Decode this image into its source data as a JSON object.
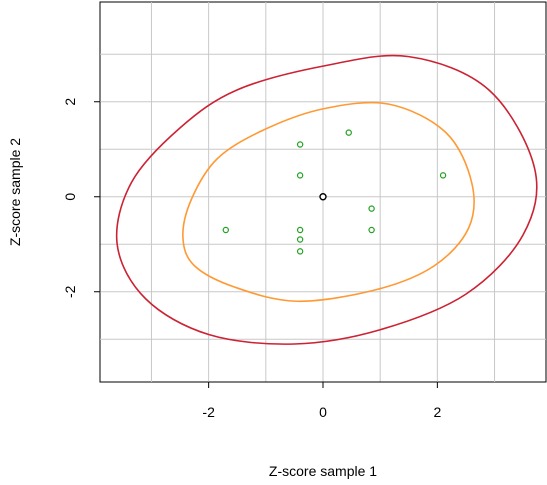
{
  "chart_data": {
    "type": "scatter",
    "title": "",
    "xlabel": "Z-score sample 1",
    "ylabel": "Z-score sample 2",
    "xlim": [
      -3.9,
      3.9
    ],
    "ylim": [
      -3.9,
      4.1
    ],
    "grid": true,
    "x_ticks": [
      -2,
      0,
      2
    ],
    "x_tick_labels": [
      "-2",
      "0",
      "2"
    ],
    "y_ticks": [
      -2,
      0,
      2
    ],
    "y_tick_labels": [
      "-2",
      "0",
      "2"
    ],
    "colors": {
      "points": "#22a022",
      "center": "#000000",
      "outer_ellipse": "#cc2233",
      "inner_ellipse": "#ff9933",
      "grid": "#c8c8c8"
    },
    "series": [
      {
        "points": [
          {
            "x": -1.7,
            "y": -0.7
          },
          {
            "x": -0.4,
            "y": 1.1
          },
          {
            "x": -0.4,
            "y": 0.45
          },
          {
            "x": -0.4,
            "y": -0.7
          },
          {
            "x": -0.4,
            "y": -0.9
          },
          {
            "x": -0.4,
            "y": -1.15
          },
          {
            "x": 0.45,
            "y": 1.35
          },
          {
            "x": 0.85,
            "y": -0.25
          },
          {
            "x": 0.85,
            "y": -0.7
          },
          {
            "x": 2.1,
            "y": 0.45
          }
        ]
      }
    ],
    "center": {
      "x": 0.0,
      "y": 0.0
    },
    "ellipses": [
      {
        "name": "outer",
        "points": [
          [
            -3.6,
            -1.0
          ],
          [
            -3.35,
            0.3
          ],
          [
            -2.5,
            1.45
          ],
          [
            -1.5,
            2.25
          ],
          [
            0.0,
            2.75
          ],
          [
            1.5,
            2.95
          ],
          [
            2.9,
            2.25
          ],
          [
            3.7,
            0.6
          ],
          [
            3.5,
            -0.8
          ],
          [
            2.5,
            -2.05
          ],
          [
            1.0,
            -2.8
          ],
          [
            -0.5,
            -3.1
          ],
          [
            -2.0,
            -2.9
          ],
          [
            -3.1,
            -2.15
          ]
        ]
      },
      {
        "name": "inner",
        "points": [
          [
            -2.45,
            -0.85
          ],
          [
            -2.3,
            -0.05
          ],
          [
            -1.85,
            0.8
          ],
          [
            -1.05,
            1.4
          ],
          [
            0.0,
            1.85
          ],
          [
            1.15,
            1.95
          ],
          [
            2.15,
            1.35
          ],
          [
            2.6,
            0.3
          ],
          [
            2.55,
            -0.65
          ],
          [
            1.95,
            -1.45
          ],
          [
            0.95,
            -1.95
          ],
          [
            -0.45,
            -2.2
          ],
          [
            -1.55,
            -1.9
          ],
          [
            -2.25,
            -1.45
          ]
        ]
      }
    ]
  }
}
